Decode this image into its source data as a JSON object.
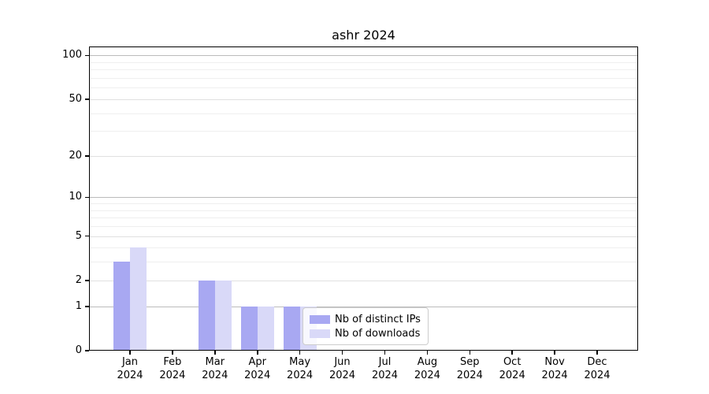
{
  "chart_data": {
    "type": "bar",
    "title": "ashr 2024",
    "categories": [
      "Jan 2024",
      "Feb 2024",
      "Mar 2024",
      "Apr 2024",
      "May 2024",
      "Jun 2024",
      "Jul 2024",
      "Aug 2024",
      "Sep 2024",
      "Oct 2024",
      "Nov 2024",
      "Dec 2024"
    ],
    "series": [
      {
        "name": "Nb of distinct IPs",
        "color": "#a8a8f2",
        "values": [
          3,
          0,
          2,
          1,
          1,
          0,
          0,
          0,
          0,
          0,
          0,
          0
        ]
      },
      {
        "name": "Nb of downloads",
        "color": "#d9d9f8",
        "values": [
          4,
          0,
          2,
          1,
          1,
          0,
          0,
          0,
          0,
          0,
          0,
          0
        ]
      }
    ],
    "yscale": "log1p",
    "ylim": [
      0,
      115
    ],
    "y_major_ticks": [
      0,
      1,
      2,
      5,
      10,
      20,
      50,
      100
    ],
    "y_decade_gridlines": [
      1,
      10,
      100
    ],
    "y_minor_gridlines": [
      3,
      4,
      6,
      7,
      8,
      9,
      30,
      40,
      60,
      70,
      80,
      90
    ],
    "grid": true,
    "legend_position": "inside lower center",
    "colors": {
      "grid_decade": "#bbbbbb",
      "grid_major": "#e0e0e0",
      "grid_minor": "#efefef",
      "spine": "#000000",
      "legend_border": "#cccccc"
    }
  }
}
